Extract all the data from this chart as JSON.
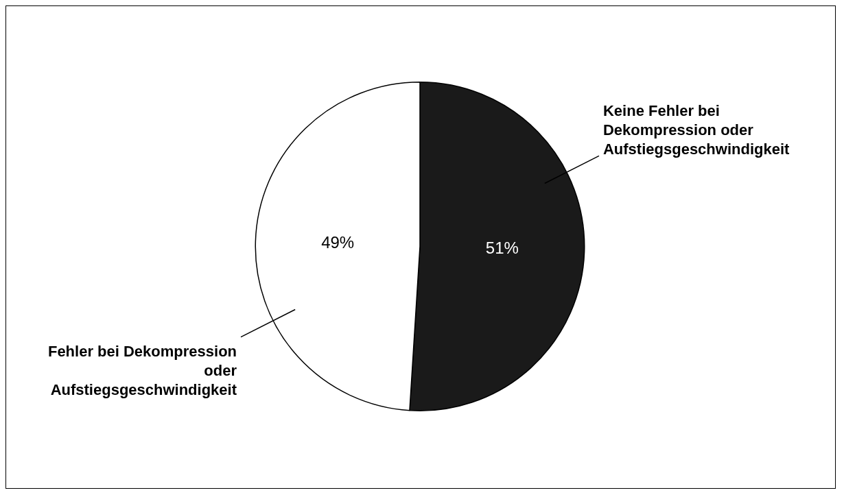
{
  "chart_data": {
    "type": "pie",
    "categories": [
      "Keine Fehler bei Dekompression oder Aufstiegsgeschwindigkeit",
      "Fehler bei Dekompression oder Aufstiegsgeschwindigkeit"
    ],
    "values": [
      51,
      49
    ],
    "value_labels": [
      "51%",
      "49%"
    ],
    "colors": [
      "#1a1a1a",
      "#ffffff"
    ],
    "legend": false
  }
}
